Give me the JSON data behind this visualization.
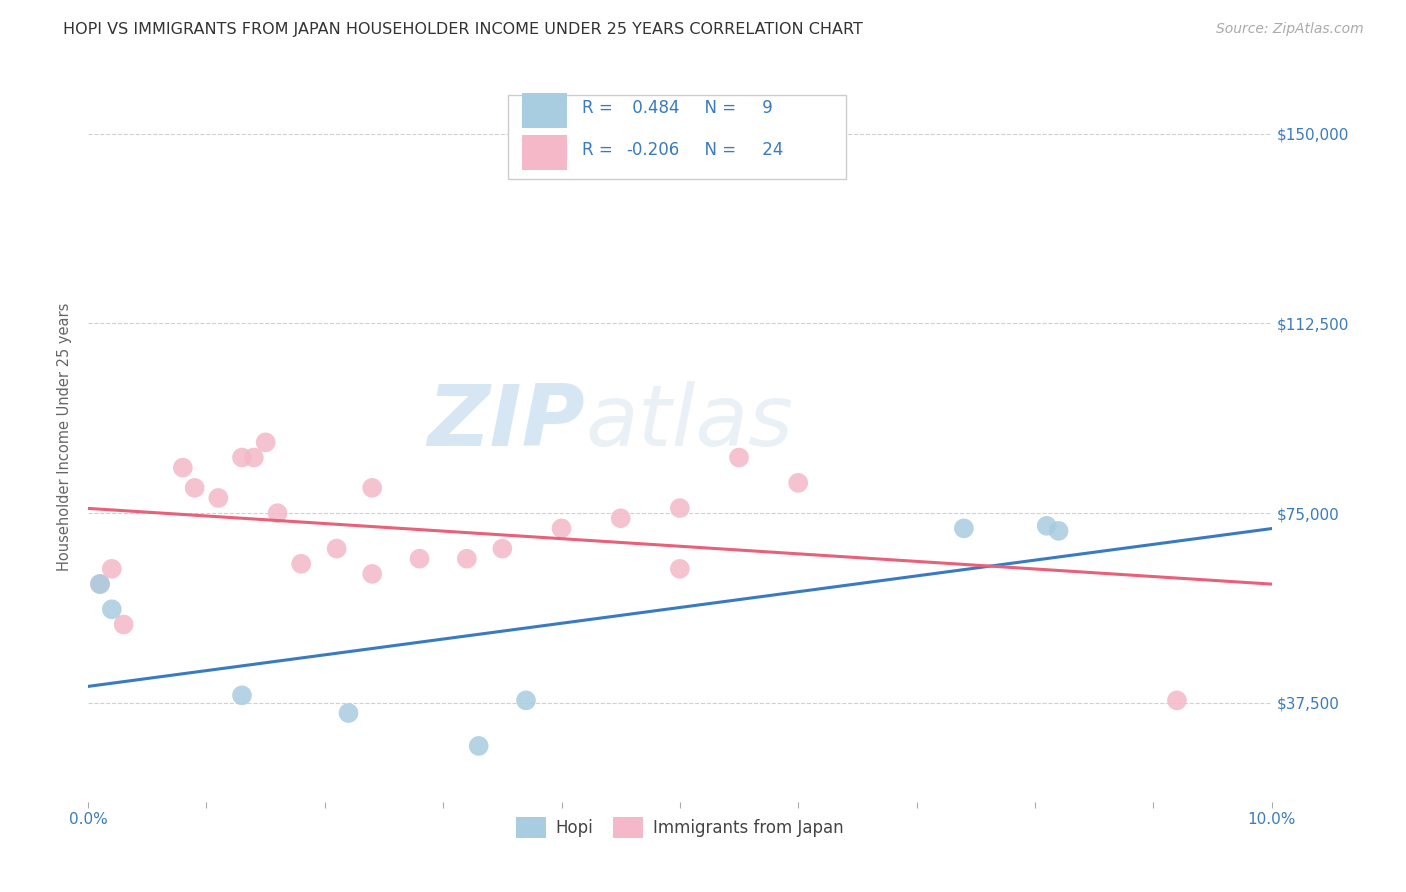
{
  "title": "HOPI VS IMMIGRANTS FROM JAPAN HOUSEHOLDER INCOME UNDER 25 YEARS CORRELATION CHART",
  "source": "Source: ZipAtlas.com",
  "ylabel": "Householder Income Under 25 years",
  "y_ticks": [
    37500,
    75000,
    112500,
    150000
  ],
  "y_tick_labels": [
    "$37,500",
    "$75,000",
    "$112,500",
    "$150,000"
  ],
  "x_min": 0.0,
  "x_max": 0.1,
  "y_min": 18000,
  "y_max": 162000,
  "hopi_r": 0.484,
  "hopi_n": 9,
  "japan_r": -0.206,
  "japan_n": 24,
  "hopi_color": "#a8cce0",
  "japan_color": "#f4b8c8",
  "hopi_line_color": "#3a7bbf",
  "japan_line_color": "#e8607a",
  "legend_text_color": "#3a7bbf",
  "hopi_scatter_x": [
    0.001,
    0.002,
    0.013,
    0.022,
    0.033,
    0.037,
    0.074,
    0.081,
    0.082
  ],
  "hopi_scatter_y": [
    61000,
    56000,
    39000,
    35500,
    29000,
    38000,
    72000,
    72500,
    71500
  ],
  "japan_scatter_x": [
    0.001,
    0.002,
    0.003,
    0.008,
    0.009,
    0.011,
    0.013,
    0.014,
    0.015,
    0.016,
    0.018,
    0.021,
    0.024,
    0.024,
    0.028,
    0.032,
    0.035,
    0.04,
    0.045,
    0.05,
    0.05,
    0.055,
    0.06,
    0.092
  ],
  "japan_scatter_y": [
    61000,
    64000,
    53000,
    84000,
    80000,
    78000,
    86000,
    86000,
    89000,
    75000,
    65000,
    68000,
    63000,
    80000,
    66000,
    66000,
    68000,
    72000,
    74000,
    64000,
    76000,
    86000,
    81000,
    38000
  ],
  "background_color": "#ffffff",
  "grid_color": "#d0d0d0",
  "scatter_size": 200,
  "watermark": "ZIP",
  "watermark2": "atlas",
  "title_fontsize": 11.5,
  "source_fontsize": 10,
  "tick_fontsize": 11,
  "legend_fontsize": 12,
  "ylabel_fontsize": 10.5
}
